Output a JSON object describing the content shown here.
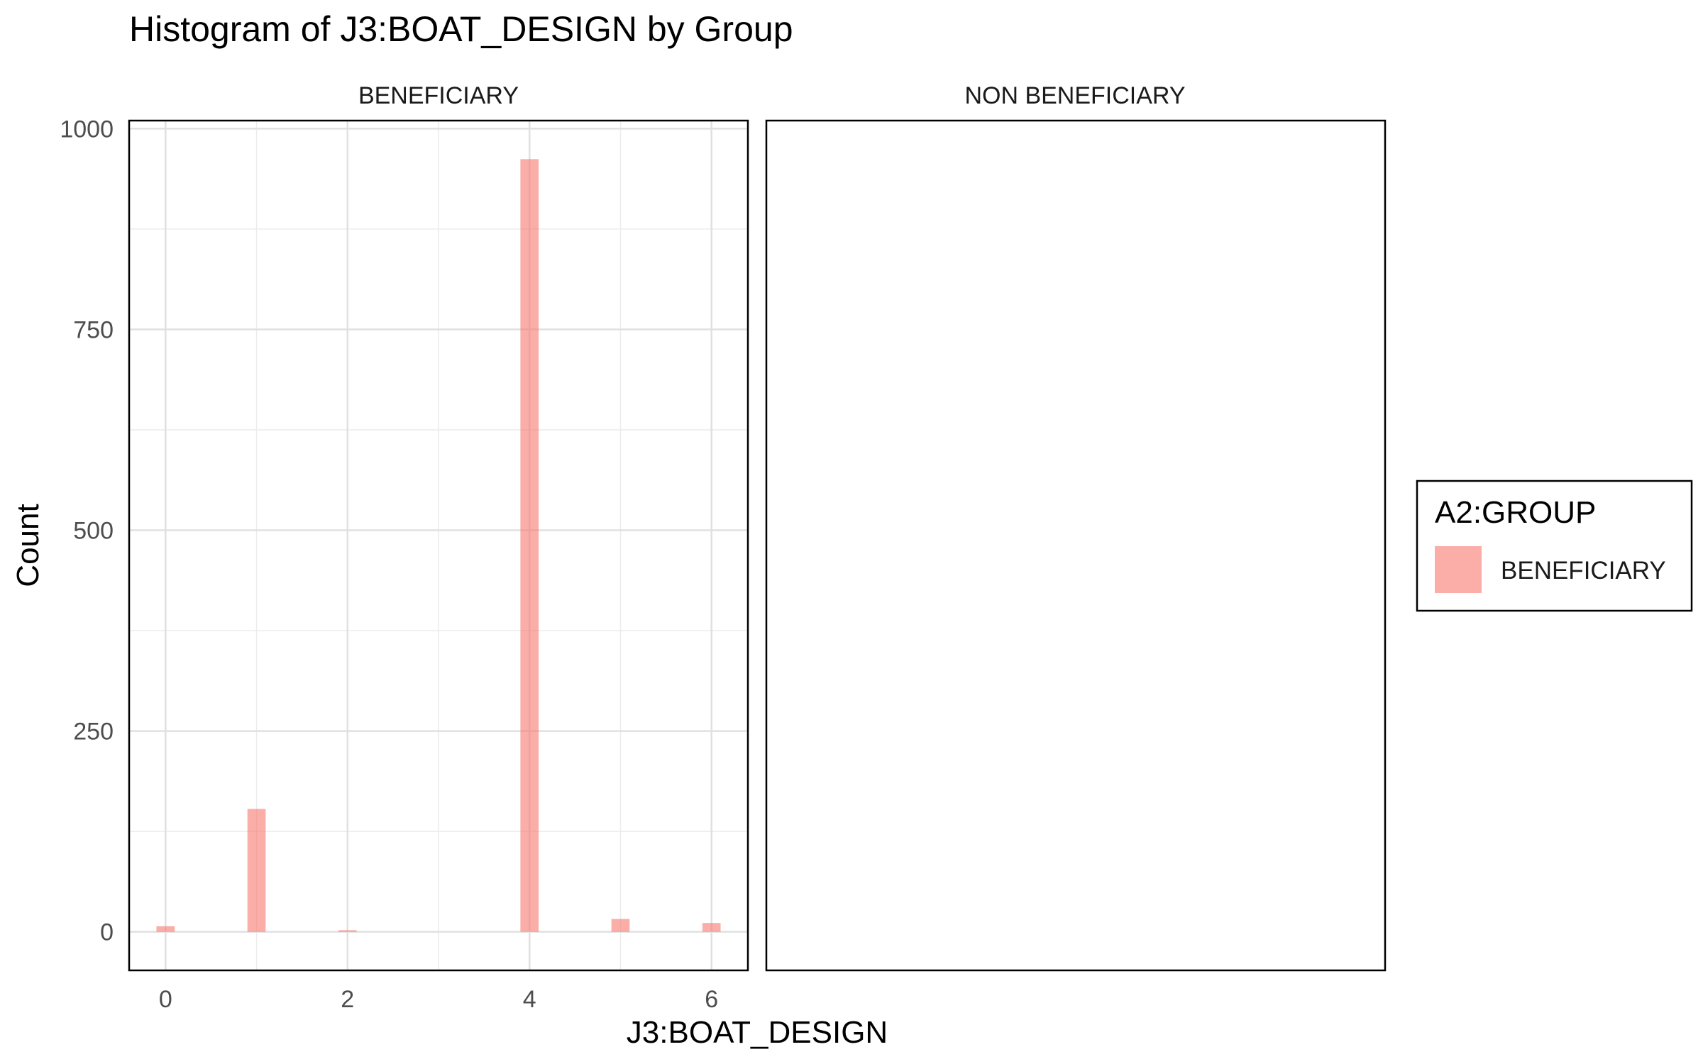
{
  "chart_data": {
    "type": "bar",
    "title": "Histogram of J3:BOAT_DESIGN by Group",
    "xlabel": "J3:BOAT_DESIGN",
    "ylabel": "Count",
    "xlim": [
      -0.4,
      6.4
    ],
    "ylim": [
      -48,
      1010
    ],
    "x_ticks": [
      0,
      2,
      4,
      6
    ],
    "y_ticks": [
      0,
      250,
      500,
      750,
      1000
    ],
    "grid": true,
    "legend": {
      "title": "A2:GROUP",
      "position": "right",
      "entries": [
        {
          "label": "BENEFICIARY",
          "color": "#F8766D"
        }
      ]
    },
    "bar_width": 0.2,
    "facets": [
      {
        "label": "BENEFICIARY",
        "series": [
          {
            "name": "BENEFICIARY",
            "color": "#F8766D",
            "x": [
              0,
              1,
              2,
              4,
              5,
              6
            ],
            "values": [
              7,
              153,
              2,
              962,
              16,
              11
            ]
          }
        ]
      },
      {
        "label": "NON BENEFICIARY",
        "series": []
      }
    ]
  }
}
